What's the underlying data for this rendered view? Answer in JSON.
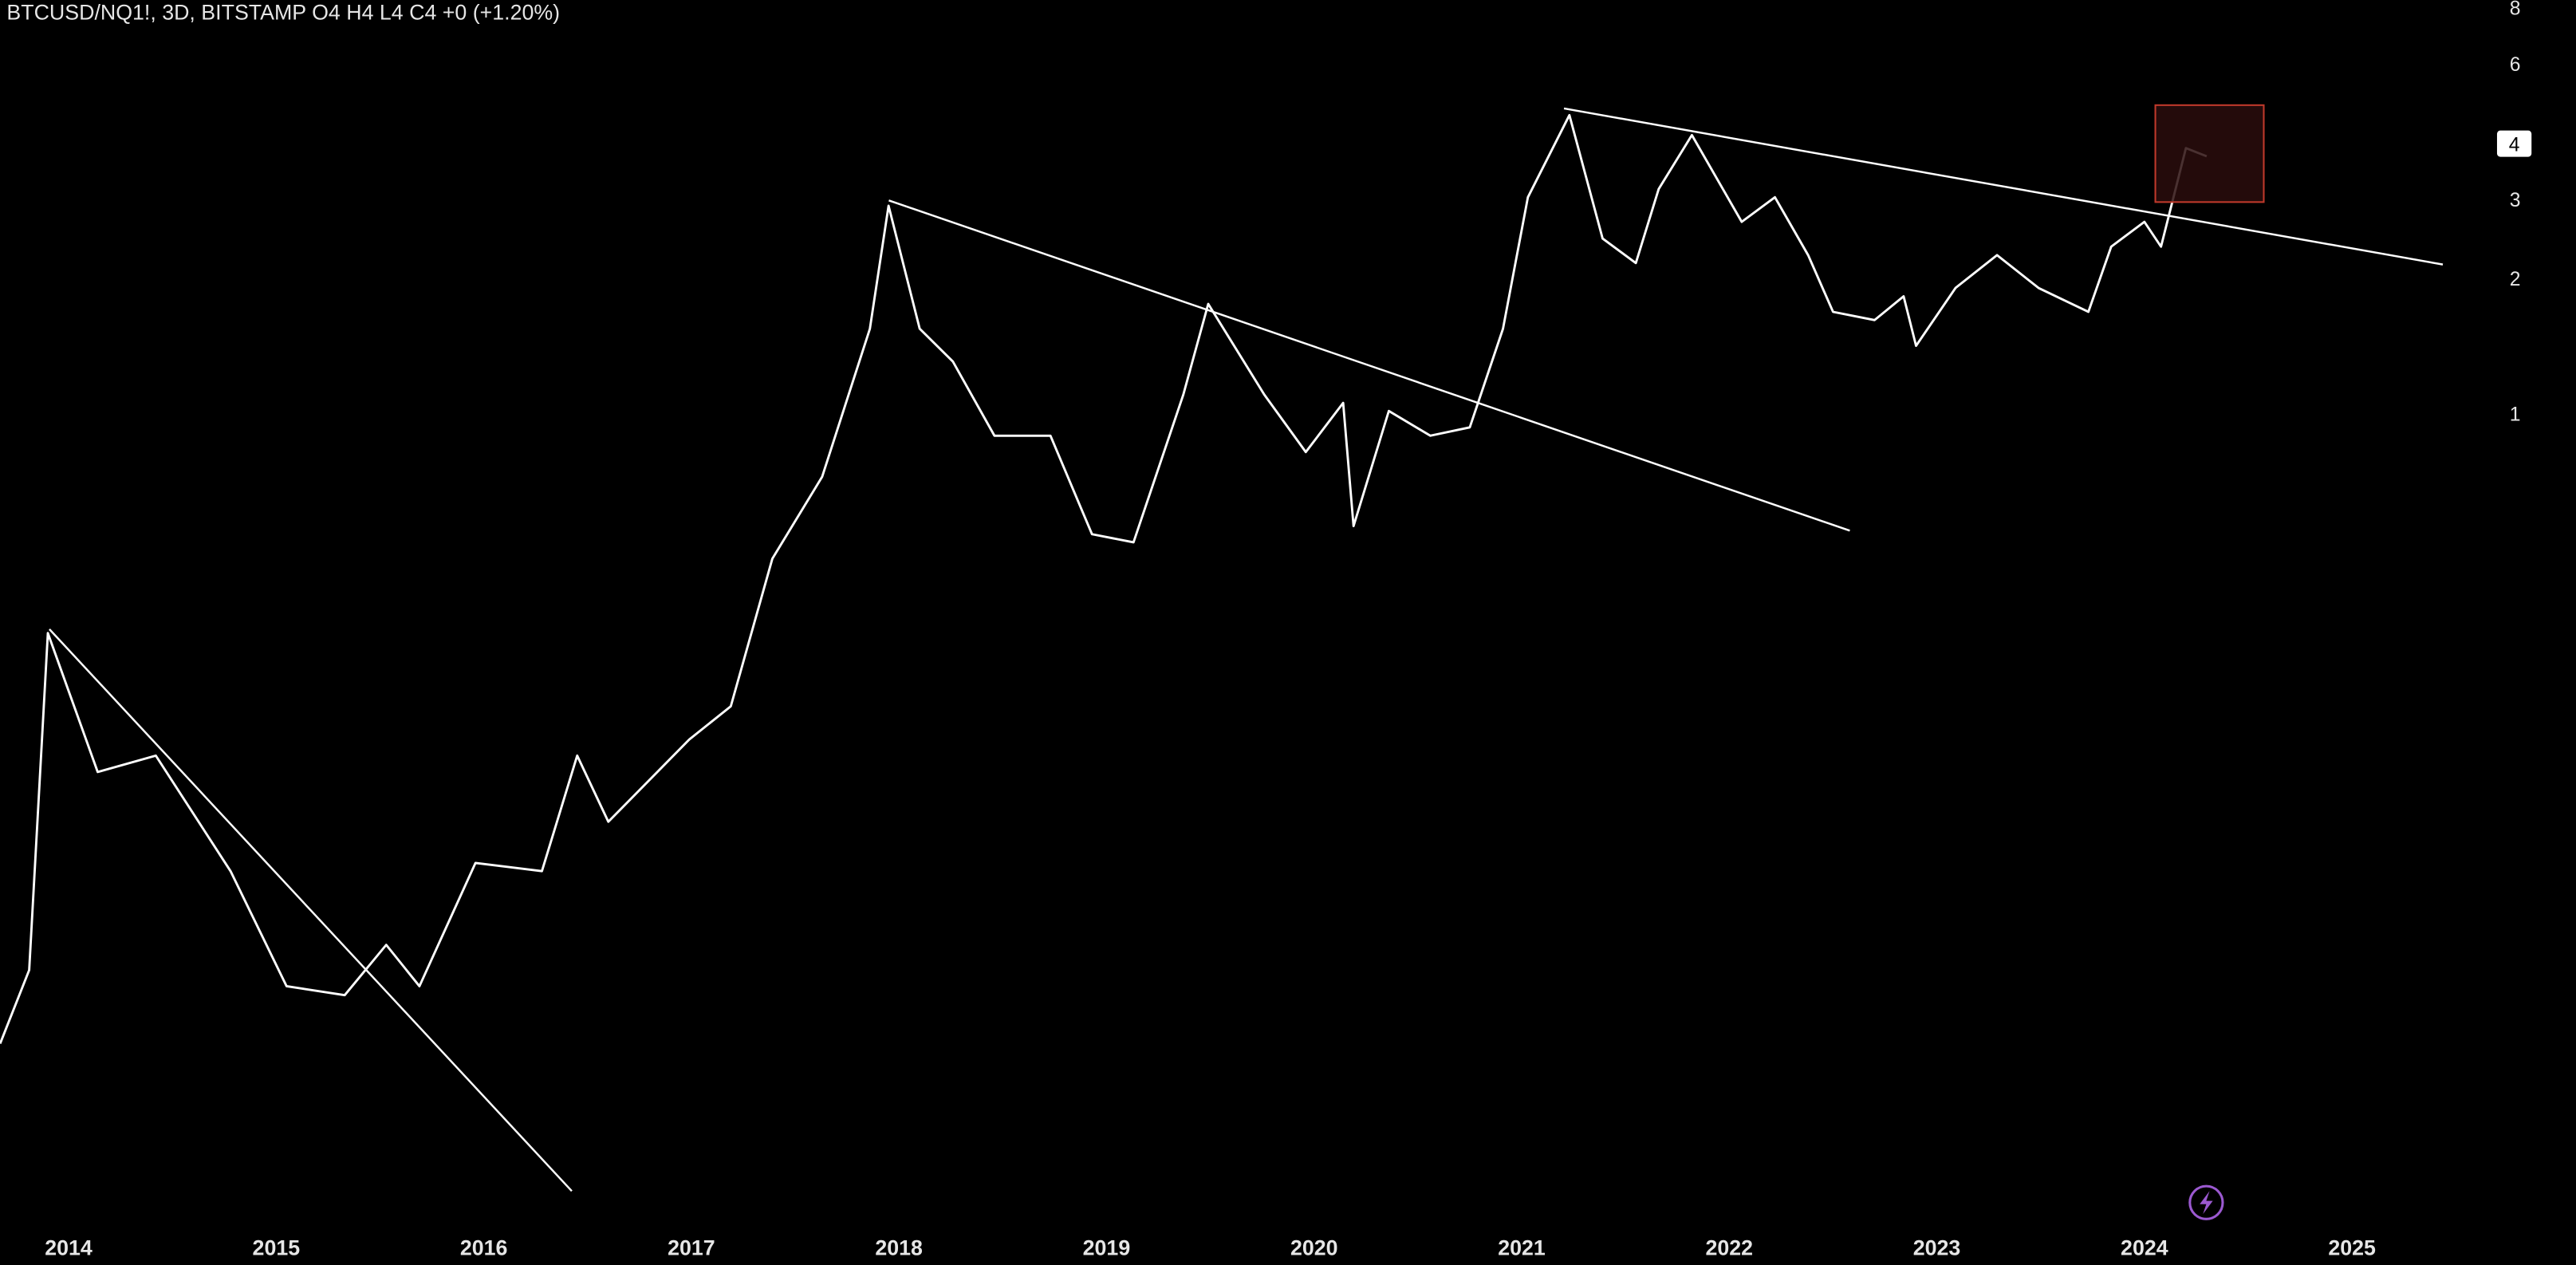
{
  "chart_data": {
    "type": "line",
    "title": "BTCUSD/NQ1!, 3D, BITSTAMP  O4  H4  L4  C4  +0 (+1.20%)",
    "log_scale": true,
    "grid": false,
    "last_price": 4,
    "xlim": [
      2013.67,
      2025.58
    ],
    "xticks": [
      2014,
      2015,
      2016,
      2017,
      2018,
      2019,
      2020,
      2021,
      2022,
      2023,
      2024,
      2025
    ],
    "ylim": [
      0.0158,
      8.35
    ],
    "yticks": [
      1,
      2,
      3,
      4,
      6,
      8
    ],
    "x": [
      2013.67,
      2013.81,
      2013.9,
      2014.14,
      2014.42,
      2014.78,
      2015.05,
      2015.33,
      2015.53,
      2015.69,
      2015.96,
      2016.28,
      2016.45,
      2016.6,
      2016.99,
      2017.19,
      2017.39,
      2017.63,
      2017.86,
      2017.95,
      2018.1,
      2018.26,
      2018.46,
      2018.73,
      2018.93,
      2019.13,
      2019.37,
      2019.49,
      2019.76,
      2019.96,
      2020.14,
      2020.19,
      2020.36,
      2020.56,
      2020.75,
      2020.91,
      2021.03,
      2021.23,
      2021.39,
      2021.55,
      2021.66,
      2021.82,
      2022.06,
      2022.22,
      2022.38,
      2022.5,
      2022.7,
      2022.84,
      2022.9,
      2023.09,
      2023.29,
      2023.49,
      2023.73,
      2023.84,
      2024.0,
      2024.08,
      2024.2,
      2024.3
    ],
    "series": [
      {
        "name": "BTCUSD/NQ1!",
        "color": "#ffffff",
        "values": [
          0.0398,
          0.058,
          0.326,
          0.16,
          0.174,
          0.0963,
          0.0534,
          0.051,
          0.066,
          0.0534,
          0.1004,
          0.0963,
          0.174,
          0.124,
          0.189,
          0.224,
          0.477,
          0.726,
          1.55,
          2.91,
          1.55,
          1.31,
          0.896,
          0.896,
          0.541,
          0.519,
          1.106,
          1.76,
          1.106,
          0.824,
          1.06,
          0.564,
          1.017,
          0.896,
          0.935,
          1.55,
          3.04,
          4.63,
          2.46,
          2.17,
          3.17,
          4.18,
          2.68,
          3.04,
          2.26,
          1.69,
          1.62,
          1.83,
          1.42,
          1.91,
          2.26,
          1.91,
          1.69,
          2.36,
          2.68,
          2.36,
          3.91,
          3.75
        ]
      }
    ]
  }
}
